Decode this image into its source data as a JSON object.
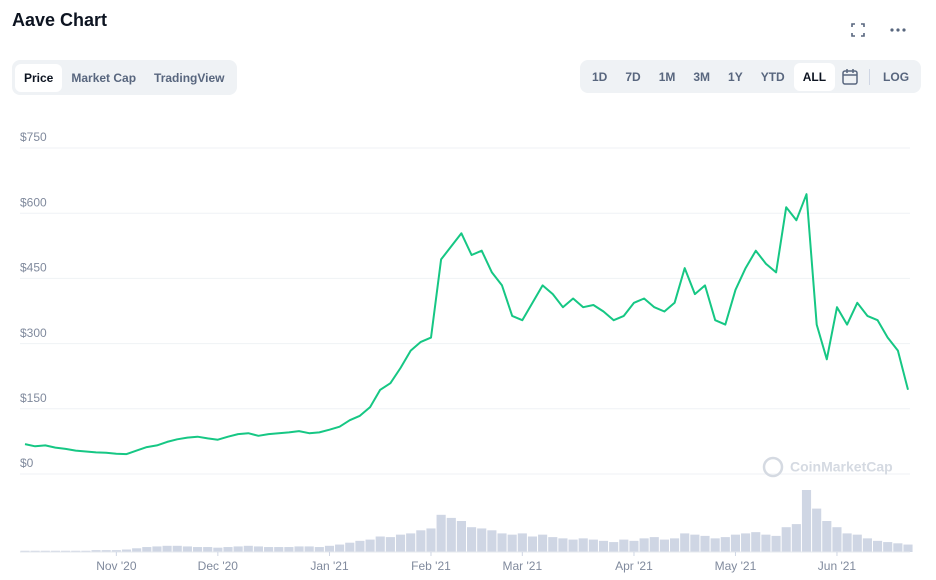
{
  "header": {
    "title": "Aave Chart"
  },
  "tabs": {
    "items": [
      "Price",
      "Market Cap",
      "TradingView"
    ],
    "active": 0
  },
  "ranges": {
    "items": [
      "1D",
      "7D",
      "1M",
      "3M",
      "1Y",
      "YTD",
      "ALL"
    ],
    "active": 6,
    "log": "LOG"
  },
  "watermark": "CoinMarketCap",
  "chart_data": {
    "type": "line",
    "categories": [
      null,
      null,
      null,
      null,
      null,
      null,
      null,
      null,
      null,
      "Nov '20",
      null,
      null,
      null,
      null,
      null,
      null,
      null,
      null,
      null,
      "Dec '20",
      null,
      null,
      null,
      null,
      null,
      null,
      null,
      null,
      null,
      null,
      "Jan '21",
      null,
      null,
      null,
      null,
      null,
      null,
      null,
      null,
      null,
      "Feb '21",
      null,
      null,
      null,
      null,
      null,
      null,
      null,
      null,
      "Mar '21",
      null,
      null,
      null,
      null,
      null,
      null,
      null,
      null,
      null,
      null,
      "Apr '21",
      null,
      null,
      null,
      null,
      null,
      null,
      null,
      null,
      null,
      "May '21",
      null,
      null,
      null,
      null,
      null,
      null,
      null,
      null,
      null,
      "Jun '21",
      null,
      null,
      null,
      null,
      null,
      null,
      null
    ],
    "series": [
      {
        "color": "#16c784",
        "values": [
          55,
          50,
          52,
          47,
          44,
          40,
          38,
          36,
          35,
          33,
          32,
          40,
          48,
          52,
          60,
          66,
          70,
          72,
          68,
          65,
          72,
          78,
          80,
          74,
          78,
          80,
          82,
          85,
          80,
          82,
          88,
          95,
          110,
          120,
          140,
          180,
          195,
          230,
          270,
          290,
          300,
          480,
          510,
          540,
          490,
          500,
          450,
          420,
          350,
          340,
          380,
          420,
          400,
          370,
          390,
          370,
          375,
          360,
          340,
          350,
          380,
          390,
          370,
          360,
          380,
          460,
          400,
          420,
          340,
          330,
          410,
          460,
          500,
          470,
          450,
          600,
          570,
          630,
          330,
          250,
          370,
          330,
          380,
          350,
          340,
          300,
          270,
          180
        ]
      },
      {
        "color": "#cfd6e4",
        "axis": "y2",
        "values": [
          2,
          2,
          2,
          2,
          2,
          2,
          2,
          3,
          3,
          3,
          4,
          6,
          8,
          9,
          10,
          10,
          9,
          8,
          8,
          7,
          8,
          9,
          10,
          9,
          8,
          8,
          8,
          9,
          9,
          8,
          10,
          12,
          15,
          18,
          20,
          25,
          24,
          28,
          30,
          35,
          38,
          60,
          55,
          50,
          40,
          38,
          35,
          30,
          28,
          30,
          25,
          28,
          24,
          22,
          20,
          22,
          20,
          18,
          16,
          20,
          18,
          22,
          24,
          20,
          22,
          30,
          28,
          26,
          22,
          24,
          28,
          30,
          32,
          28,
          26,
          40,
          45,
          100,
          70,
          50,
          40,
          30,
          28,
          22,
          18,
          16,
          14,
          12
        ]
      }
    ],
    "ylim": [
      0,
      750
    ],
    "yticks": [
      {
        "value": 0,
        "label": "$0"
      },
      {
        "value": 150,
        "label": "$150"
      },
      {
        "value": 300,
        "label": "$300"
      },
      {
        "value": 450,
        "label": "$450"
      },
      {
        "value": 600,
        "label": "$600"
      },
      {
        "value": 750,
        "label": "$750"
      }
    ],
    "y2lim": [
      0,
      100
    ],
    "grid": true
  }
}
